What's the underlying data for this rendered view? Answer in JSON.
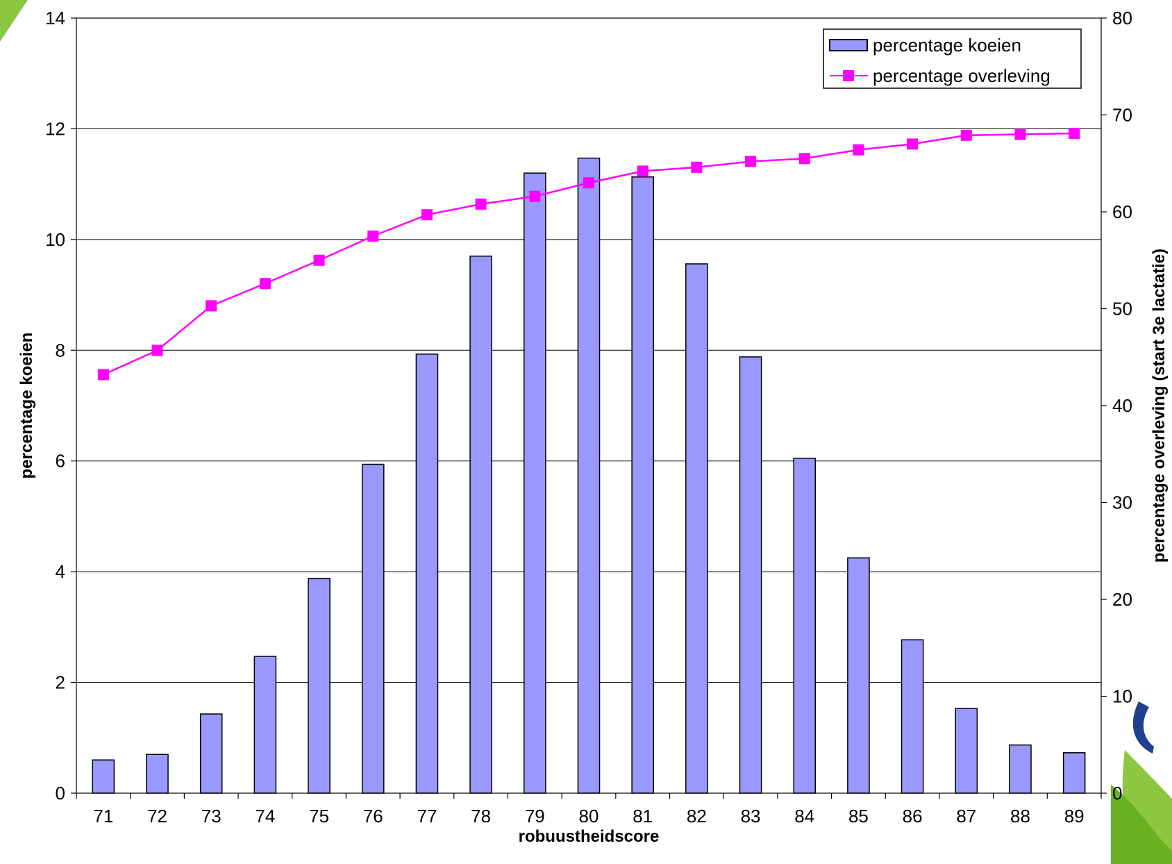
{
  "chart_data": {
    "type": "bar",
    "categories": [
      "71",
      "72",
      "73",
      "74",
      "75",
      "76",
      "77",
      "78",
      "79",
      "80",
      "81",
      "82",
      "83",
      "84",
      "85",
      "86",
      "87",
      "88",
      "89"
    ],
    "xlabel": "robuustheidscore",
    "ylabel": "percentage koeien",
    "y2label": "percentage overleving (start 3e lactatie)",
    "ylim": [
      0,
      14
    ],
    "y2lim": [
      0,
      80
    ],
    "yticks": [
      "0",
      "2",
      "4",
      "6",
      "8",
      "10",
      "12",
      "14"
    ],
    "y2ticks": [
      "0",
      "10",
      "20",
      "30",
      "40",
      "50",
      "60",
      "70",
      "80"
    ],
    "grid": true,
    "legend_position": "top-right",
    "series": [
      {
        "name": "percentage koeien",
        "type": "bar",
        "axis": "left",
        "color": "#9999ff",
        "values": [
          0.6,
          0.7,
          1.43,
          2.47,
          3.88,
          5.94,
          7.93,
          9.7,
          11.2,
          11.47,
          11.13,
          9.56,
          7.88,
          6.05,
          4.25,
          2.77,
          1.53,
          0.87,
          0.73
        ]
      },
      {
        "name": "percentage overleving",
        "type": "line",
        "axis": "right",
        "color": "#ff00ff",
        "values": [
          43.2,
          45.7,
          50.3,
          52.6,
          55.0,
          57.5,
          59.7,
          60.8,
          61.6,
          63.0,
          64.2,
          64.6,
          65.2,
          65.5,
          66.4,
          67.0,
          67.9,
          68.0,
          68.1
        ]
      }
    ]
  },
  "decor": {
    "logo": "green-blue-swoosh-logo"
  }
}
